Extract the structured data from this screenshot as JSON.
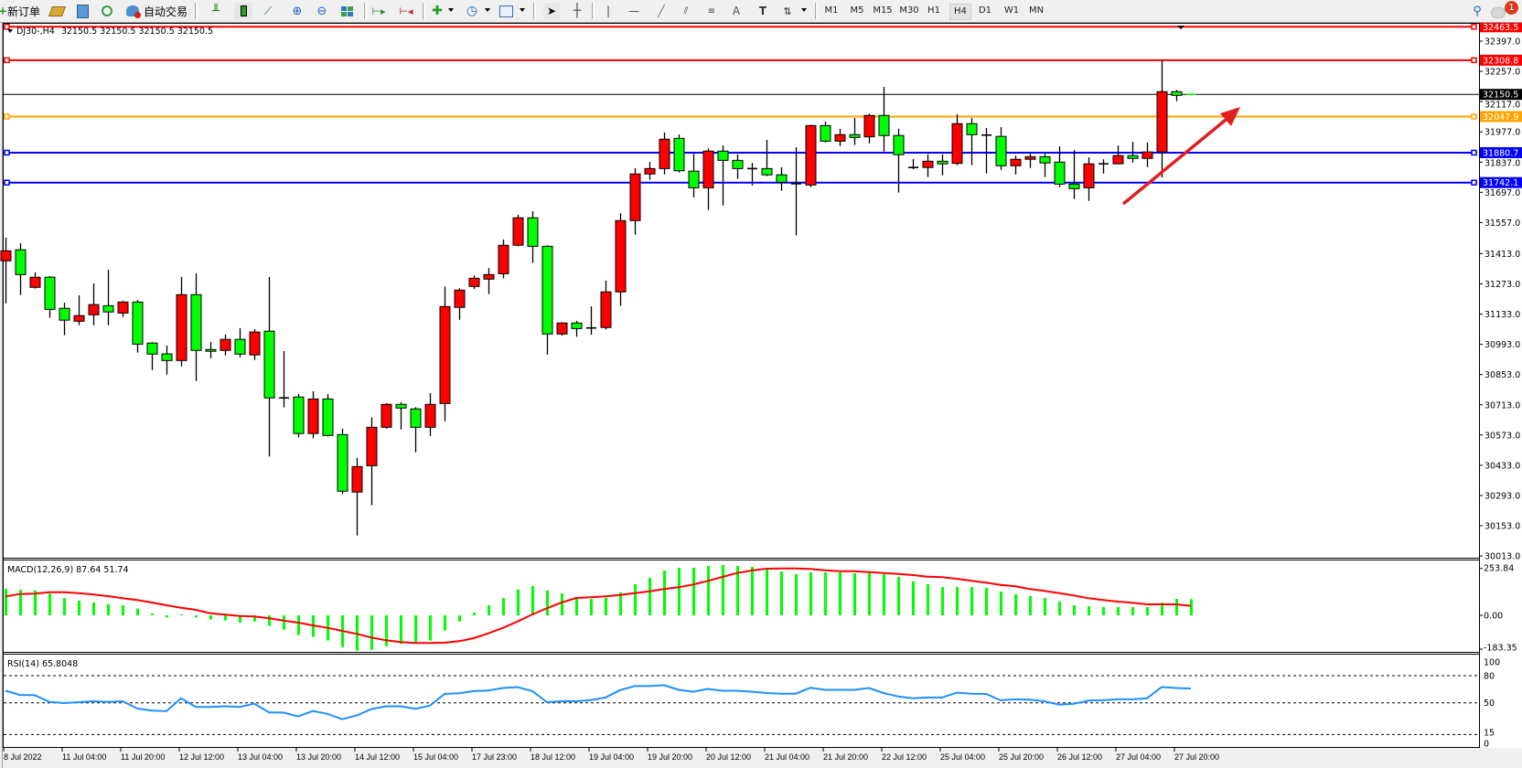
{
  "toolbar": {
    "new_order": "新订单",
    "auto_trading": "自动交易",
    "timeframes": [
      "M1",
      "M5",
      "M15",
      "M30",
      "H1",
      "H4",
      "D1",
      "W1",
      "MN"
    ],
    "active_timeframe": "H4",
    "notification_count": "1"
  },
  "chart": {
    "symbol_period": "DJ30-,H4",
    "ohlc_readout": "32150.5 32150.5 32150.5 32150.5",
    "bid_price": "32150.5",
    "horizontal_lines": [
      {
        "price": "32463.5",
        "color": "#ff0000"
      },
      {
        "price": "32308.8",
        "color": "#ff0000"
      },
      {
        "price": "32047.9",
        "color": "#ffa500"
      },
      {
        "price": "31880.7",
        "color": "#0000ff"
      },
      {
        "price": "31742.1",
        "color": "#0000ff"
      }
    ],
    "price_ticks": [
      "32397.0",
      "32257.0",
      "32117.0",
      "31977.0",
      "31837.0",
      "31697.0",
      "31557.0",
      "31413.0",
      "31273.0",
      "31133.0",
      "30993.0",
      "30853.0",
      "30713.0",
      "30573.0",
      "30433.0",
      "30293.0",
      "30153.0",
      "30013.0"
    ],
    "time_labels": [
      "8 Jul 2022",
      "11 Jul 04:00",
      "11 Jul 20:00",
      "12 Jul 12:00",
      "13 Jul 04:00",
      "13 Jul 20:00",
      "14 Jul 12:00",
      "15 Jul 04:00",
      "17 Jul 23:00",
      "18 Jul 12:00",
      "19 Jul 04:00",
      "19 Jul 20:00",
      "20 Jul 12:00",
      "21 Jul 04:00",
      "21 Jul 20:00",
      "22 Jul 12:00",
      "25 Jul 04:00",
      "25 Jul 20:00",
      "26 Jul 12:00",
      "27 Jul 04:00",
      "27 Jul 20:00"
    ],
    "bull_color": "#ff0000",
    "bear_color": "#00ff00",
    "arrow_color": "#e02020"
  },
  "macd": {
    "label": "MACD(12,26,9) 87.64 51.74",
    "axis_labels": [
      "253.84",
      "0.00",
      "-183.35"
    ],
    "histogram_color": "#00ff00",
    "signal_color": "#ff0000"
  },
  "rsi": {
    "label": "RSI(14) 65.8048",
    "axis_labels": [
      "100",
      "80",
      "50",
      "15",
      "0"
    ],
    "line_color": "#1e90ff"
  },
  "chart_data": [
    {
      "type": "candlestick",
      "title": "DJ30-,H4",
      "ylim": [
        30013,
        32463.5
      ],
      "columns": [
        "open",
        "high",
        "low",
        "close"
      ],
      "candles": [
        [
          31380,
          31487,
          31183,
          31426
        ],
        [
          31431,
          31461,
          31221,
          31316
        ],
        [
          31257,
          31326,
          31251,
          31304
        ],
        [
          31304,
          31309,
          31116,
          31155
        ],
        [
          31160,
          31186,
          31035,
          31105
        ],
        [
          31100,
          31220,
          31082,
          31126
        ],
        [
          31130,
          31275,
          31082,
          31177
        ],
        [
          31172,
          31339,
          31082,
          31143
        ],
        [
          31138,
          31195,
          31120,
          31189
        ],
        [
          31189,
          31198,
          30955,
          30994
        ],
        [
          30999,
          31003,
          30874,
          30948
        ],
        [
          30949,
          30987,
          30853,
          30918
        ],
        [
          30918,
          31305,
          30891,
          31223
        ],
        [
          31223,
          31322,
          30823,
          30965
        ],
        [
          30969,
          31004,
          30929,
          30961
        ],
        [
          30965,
          31038,
          30942,
          31016
        ],
        [
          31016,
          31068,
          30934,
          30948
        ],
        [
          30944,
          31063,
          30921,
          31050
        ],
        [
          31054,
          31305,
          30474,
          30745
        ],
        [
          30745,
          30962,
          30701,
          30745
        ],
        [
          30749,
          30763,
          30562,
          30580
        ],
        [
          30580,
          30776,
          30558,
          30740
        ],
        [
          30740,
          30763,
          30567,
          30571
        ],
        [
          30575,
          30602,
          30300,
          30313
        ],
        [
          30309,
          30467,
          30108,
          30427
        ],
        [
          30431,
          30654,
          30248,
          30609
        ],
        [
          30609,
          30721,
          30603,
          30715
        ],
        [
          30715,
          30725,
          30599,
          30698
        ],
        [
          30694,
          30702,
          30493,
          30609
        ],
        [
          30609,
          30767,
          30569,
          30715
        ],
        [
          30719,
          31261,
          30637,
          31168
        ],
        [
          31164,
          31253,
          31107,
          31244
        ],
        [
          31261,
          31312,
          31249,
          31299
        ],
        [
          31295,
          31346,
          31226,
          31316
        ],
        [
          31320,
          31478,
          31299,
          31452
        ],
        [
          31452,
          31593,
          31447,
          31579
        ],
        [
          31579,
          31610,
          31370,
          31447
        ],
        [
          31447,
          31452,
          30946,
          31041
        ],
        [
          31041,
          31096,
          31033,
          31092
        ],
        [
          31092,
          31102,
          31028,
          31066
        ],
        [
          31069,
          31169,
          31037,
          31069
        ],
        [
          31071,
          31288,
          31062,
          31236
        ],
        [
          31236,
          31601,
          31171,
          31566
        ],
        [
          31566,
          31809,
          31501,
          31782
        ],
        [
          31782,
          31838,
          31755,
          31807
        ],
        [
          31807,
          31974,
          31780,
          31943
        ],
        [
          31947,
          31965,
          31789,
          31797
        ],
        [
          31795,
          31875,
          31674,
          31718
        ],
        [
          31718,
          31900,
          31615,
          31888
        ],
        [
          31888,
          31914,
          31636,
          31845
        ],
        [
          31845,
          31873,
          31759,
          31807
        ],
        [
          31807,
          31833,
          31729,
          31807
        ],
        [
          31807,
          31940,
          31772,
          31778
        ],
        [
          31778,
          31813,
          31704,
          31744
        ],
        [
          31737,
          31906,
          31497,
          31737
        ],
        [
          31731,
          32010,
          31721,
          32006
        ],
        [
          32006,
          32025,
          31928,
          31934
        ],
        [
          31934,
          31991,
          31911,
          31964
        ],
        [
          31964,
          32041,
          31916,
          31951
        ],
        [
          31954,
          32061,
          31924,
          32053
        ],
        [
          32053,
          32185,
          31886,
          31960
        ],
        [
          31960,
          31991,
          31696,
          31871
        ],
        [
          31812,
          31851,
          31804,
          31812
        ],
        [
          31812,
          31873,
          31768,
          31841
        ],
        [
          31841,
          31873,
          31776,
          31829
        ],
        [
          31831,
          32058,
          31823,
          32015
        ],
        [
          32015,
          32041,
          31823,
          31964
        ],
        [
          31962,
          31995,
          31784,
          31962
        ],
        [
          31956,
          31999,
          31801,
          31820
        ],
        [
          31820,
          31867,
          31780,
          31850
        ],
        [
          31850,
          31875,
          31810,
          31862
        ],
        [
          31862,
          31875,
          31768,
          31833
        ],
        [
          31837,
          31910,
          31721,
          31735
        ],
        [
          31735,
          31893,
          31666,
          31714
        ],
        [
          31718,
          31859,
          31657,
          31829
        ],
        [
          31829,
          31850,
          31784,
          31829
        ],
        [
          31829,
          31914,
          31829,
          31867
        ],
        [
          31867,
          31931,
          31835,
          31854
        ],
        [
          31854,
          31927,
          31814,
          31884
        ],
        [
          31884,
          32308.8,
          31765,
          32163
        ],
        [
          32163,
          32171,
          32119,
          32146
        ],
        [
          32150.5,
          32150.5,
          32150.5,
          32150.5
        ]
      ]
    },
    {
      "type": "bar",
      "title": "MACD(12,26,9)",
      "ylim": [
        -183.35,
        253.84
      ],
      "series": [
        {
          "name": "MACD",
          "values": [
            143.7,
            138.8,
            135.5,
            117.3,
            94.2,
            79.3,
            69.4,
            59.5,
            54.5,
            36.3,
            9.9,
            -11.6,
            5,
            -11,
            -23,
            -28,
            -40,
            -33,
            -58,
            -78,
            -107,
            -117,
            -137,
            -172,
            -192,
            -187,
            -167,
            -155,
            -147,
            -137,
            -83,
            -33,
            15,
            54.5,
            94,
            139,
            158.6,
            135.5,
            119,
            94,
            89.2,
            95.8,
            123.9,
            168.5,
            203.2,
            242.8,
            257.7,
            257.7,
            267.6,
            272.6,
            267.6,
            262.7,
            247.8,
            237.9,
            223,
            232.9,
            232.9,
            232.9,
            228,
            232.9,
            223,
            208.2,
            183.4,
            168.5,
            153.6,
            153.6,
            153.6,
            148.7,
            128.9,
            114,
            104.1,
            94.2,
            74.3,
            54.5,
            49.6,
            44.6,
            44.6,
            44.6,
            44.6,
            69.4,
            89.2,
            87.64
          ]
        },
        {
          "name": "Signal",
          "values": [
            102.4,
            115.6,
            117.3,
            125.6,
            125.6,
            120.6,
            112.3,
            104.1,
            92.5,
            82.6,
            69.4,
            54.5,
            41.3,
            29.7,
            11.6,
            3.3,
            -3.3,
            -6.6,
            -16.5,
            -28.1,
            -39.6,
            -54.5,
            -67.7,
            -84.3,
            -100.8,
            -120.6,
            -135.5,
            -145.4,
            -150.3,
            -150.3,
            -148.7,
            -140.4,
            -123.9,
            -97.5,
            -67.7,
            -33,
            5,
            38,
            69.4,
            94.2,
            98,
            102.4,
            110.7,
            120.6,
            130.5,
            142,
            152,
            166.9,
            186.7,
            208.2,
            229.6,
            242.8,
            252.8,
            254.4,
            254.4,
            251.1,
            244.5,
            239.5,
            239.5,
            234.6,
            229.6,
            224.7,
            218,
            209.8,
            206.5,
            198.2,
            186.7,
            176.8,
            165.2,
            157,
            142,
            132.2,
            120.6,
            107.4,
            92.5,
            82.6,
            74.3,
            67.7,
            59.5,
            59.5,
            59.5,
            51.74
          ]
        }
      ]
    },
    {
      "type": "line",
      "title": "RSI(14)",
      "ylim": [
        0,
        100
      ],
      "levels": [
        80,
        50,
        15
      ],
      "values": [
        63.3,
        58.7,
        58.4,
        51,
        49.7,
        50.7,
        51.7,
        51,
        51.7,
        43.7,
        41.3,
        40.9,
        54.9,
        45.5,
        45.5,
        46.2,
        45.5,
        49,
        39.5,
        39.2,
        35,
        40.9,
        37.8,
        31.9,
        36,
        43,
        46.2,
        46.2,
        43.4,
        46.9,
        59.8,
        60.5,
        62.9,
        63.6,
        66.4,
        67.4,
        62.9,
        50.7,
        51.7,
        51.7,
        53,
        55.9,
        64,
        68.5,
        68.5,
        69.5,
        64.3,
        62.2,
        65.4,
        63.3,
        63.3,
        62.2,
        60.8,
        60.1,
        60.1,
        66.7,
        64.3,
        64.3,
        64.3,
        66.4,
        60.8,
        57,
        54.9,
        55.9,
        55.9,
        61.2,
        60.1,
        59.8,
        52.8,
        53.8,
        53.5,
        51.7,
        47.9,
        49,
        52.4,
        52.8,
        53.8,
        53.8,
        54.9,
        67.4,
        66.4,
        65.8
      ]
    }
  ]
}
